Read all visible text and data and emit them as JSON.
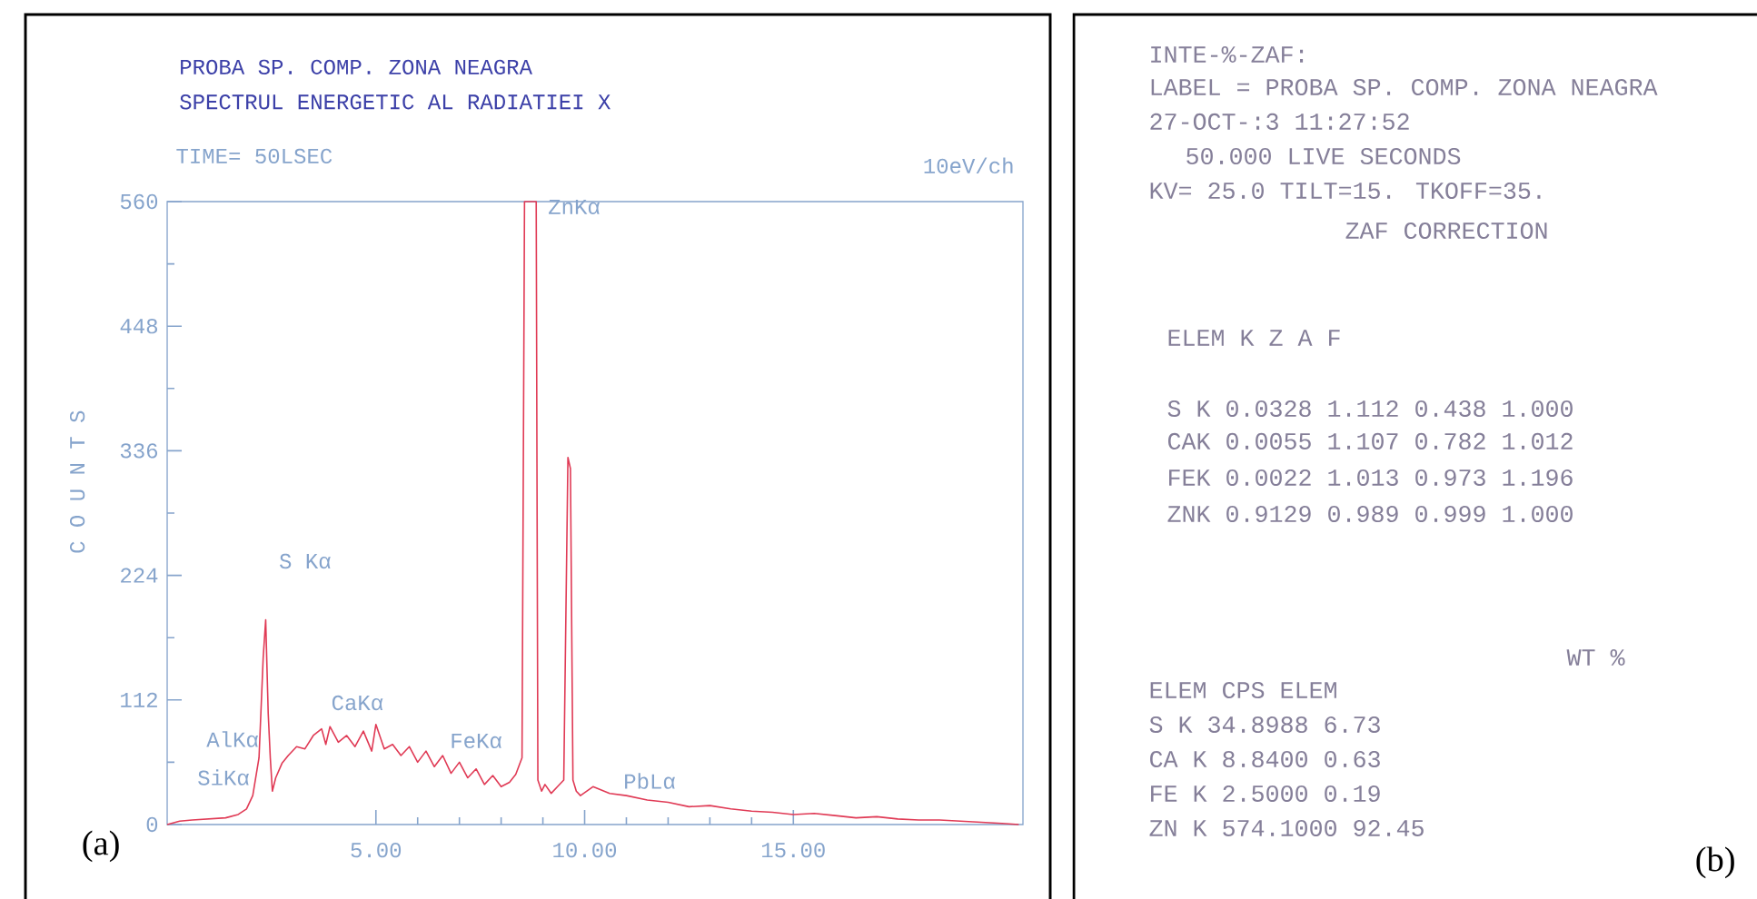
{
  "chart_data": [
    {
      "type": "line",
      "title": "PROBA SP. COMP. ZONA NEAGRA",
      "subtitle": "SPECTRUL ENERGETIC AL RADIATIEI X",
      "ylabel": "C O U N T S",
      "x": [
        0,
        0.3,
        0.6,
        1.0,
        1.4,
        1.7,
        1.9,
        2.05,
        2.2,
        2.3,
        2.36,
        2.42,
        2.47,
        2.52,
        2.6,
        2.75,
        2.9,
        3.1,
        3.3,
        3.5,
        3.7,
        3.8,
        3.9,
        4.1,
        4.3,
        4.5,
        4.7,
        4.9,
        5.0,
        5.2,
        5.4,
        5.6,
        5.8,
        6.0,
        6.2,
        6.4,
        6.6,
        6.8,
        7.0,
        7.2,
        7.4,
        7.6,
        7.8,
        8.0,
        8.2,
        8.35,
        8.5,
        8.56,
        8.84,
        8.88,
        8.97,
        9.05,
        9.2,
        9.35,
        9.5,
        9.6,
        9.66,
        9.72,
        9.8,
        9.9,
        10.2,
        10.6,
        11.0,
        11.5,
        12.0,
        12.5,
        13.0,
        13.5,
        14.0,
        14.5,
        15.0,
        15.5,
        16.0,
        16.5,
        17.0,
        17.5,
        18.0,
        18.5,
        19.0,
        19.5,
        20.0,
        20.4
      ],
      "values": [
        0,
        3,
        4,
        5,
        6,
        9,
        14,
        26,
        60,
        150,
        184,
        100,
        60,
        30,
        42,
        55,
        62,
        70,
        68,
        80,
        86,
        72,
        88,
        74,
        80,
        70,
        84,
        66,
        90,
        68,
        72,
        62,
        70,
        56,
        66,
        52,
        62,
        46,
        56,
        42,
        50,
        36,
        44,
        34,
        38,
        45,
        60,
        560,
        560,
        40,
        30,
        36,
        28,
        34,
        40,
        330,
        320,
        40,
        30,
        26,
        34,
        28,
        26,
        22,
        20,
        16,
        17,
        14,
        12,
        11,
        9,
        10,
        8,
        6,
        7,
        5,
        4,
        4,
        3,
        2,
        1,
        0
      ],
      "color": "#e03a55",
      "xlim": [
        0,
        20.5
      ],
      "ylim": [
        0,
        560
      ],
      "xticks": [
        {
          "value": 5,
          "label": "5.00"
        },
        {
          "value": 10,
          "label": "10.00"
        },
        {
          "value": 15,
          "label": "15.00"
        }
      ],
      "yticks": [
        0,
        112,
        224,
        336,
        448,
        560
      ],
      "annotations": [
        "TIME= 50LSEC",
        "10eV/ch",
        "(a)",
        "ZnKα",
        "S Kα",
        "CaKα",
        "AlKα",
        "SiKα",
        "FeKα",
        "PbLα"
      ]
    },
    {
      "type": "other",
      "annotations": [
        "INTE-%-ZAF:",
        "LABEL = PROBA SP. COMP. ZONA NEAGRA",
        "27-OCT-:3 11:27:52",
        "50.000 LIVE SECONDS",
        "KV= 25.0 TILT=15. TKOFF=35.",
        "ZAF CORRECTION",
        "ELEM K Z A F",
        "S K 0.0328 1.112 0.438 1.000",
        "CAK 0.0055 1.107 0.782 1.012",
        "FEK 0.0022 1.013 0.973 1.196",
        "ZNK 0.9129 0.989 0.999 1.000",
        "WT %",
        "ELEM CPS ELEM",
        "S K 34.8988 6.73",
        "CA K 8.8400 0.63",
        "FE K 2.5000 0.19",
        "ZN K 574.1000 92.45",
        "(b)"
      ]
    }
  ]
}
